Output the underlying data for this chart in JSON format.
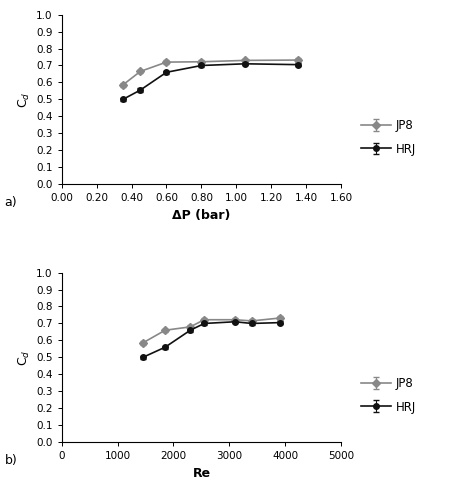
{
  "plot_a": {
    "xlabel": "ΔP (bar)",
    "ylabel": "C$_d$",
    "xlim": [
      0.0,
      1.6
    ],
    "ylim": [
      0.0,
      1.0
    ],
    "xticks": [
      0.0,
      0.2,
      0.4,
      0.6,
      0.8,
      1.0,
      1.2,
      1.4,
      1.6
    ],
    "yticks": [
      0.0,
      0.1,
      0.2,
      0.3,
      0.4,
      0.5,
      0.6,
      0.7,
      0.8,
      0.9,
      1.0
    ],
    "JP8_x": [
      0.35,
      0.45,
      0.6,
      0.8,
      1.05,
      1.35
    ],
    "JP8_y": [
      0.585,
      0.665,
      0.72,
      0.722,
      0.73,
      0.732
    ],
    "JP8_yerr": [
      0.012,
      0.01,
      0.01,
      0.008,
      0.01,
      0.01
    ],
    "HRJ_x": [
      0.35,
      0.45,
      0.6,
      0.8,
      1.05,
      1.35
    ],
    "HRJ_y": [
      0.5,
      0.555,
      0.66,
      0.7,
      0.71,
      0.705
    ],
    "HRJ_yerr": [
      0.01,
      0.01,
      0.01,
      0.008,
      0.008,
      0.008
    ],
    "label": "a)"
  },
  "plot_b": {
    "xlabel": "Re",
    "ylabel": "C$_d$",
    "xlim": [
      0,
      5000
    ],
    "ylim": [
      0.0,
      1.0
    ],
    "xticks": [
      0,
      1000,
      2000,
      3000,
      4000,
      5000
    ],
    "yticks": [
      0.0,
      0.1,
      0.2,
      0.3,
      0.4,
      0.5,
      0.6,
      0.7,
      0.8,
      0.9,
      1.0
    ],
    "JP8_x": [
      1450,
      1850,
      2300,
      2550,
      3100,
      3400,
      3900
    ],
    "JP8_y": [
      0.585,
      0.66,
      0.68,
      0.722,
      0.722,
      0.715,
      0.732
    ],
    "JP8_yerr": [
      0.012,
      0.01,
      0.01,
      0.01,
      0.008,
      0.01,
      0.01
    ],
    "HRJ_x": [
      1450,
      1850,
      2300,
      2550,
      3100,
      3400,
      3900
    ],
    "HRJ_y": [
      0.5,
      0.56,
      0.66,
      0.7,
      0.71,
      0.7,
      0.705
    ],
    "HRJ_yerr": [
      0.01,
      0.01,
      0.01,
      0.008,
      0.01,
      0.008,
      0.008
    ],
    "label": "b)"
  },
  "JP8_color": "#888888",
  "HRJ_color": "#111111",
  "marker_JP8": "D",
  "marker_HRJ": "o",
  "legend_JP8": "JP8",
  "legend_HRJ": "HRJ",
  "tick_fontsize": 7.5,
  "label_fontsize": 9,
  "figsize": [
    4.74,
    4.86
  ],
  "dpi": 100
}
